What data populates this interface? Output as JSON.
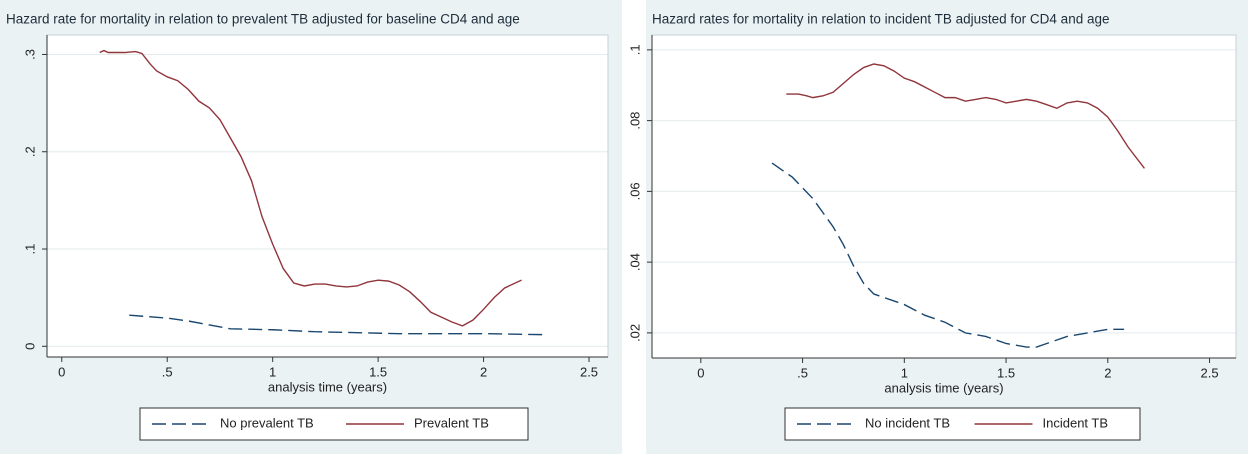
{
  "chart_data": [
    {
      "type": "line",
      "title": "Hazard rate for mortality in relation to prevalent TB adjusted for baseline CD4 and age",
      "x_label": "analysis time (years)",
      "xlim": [
        -0.07,
        2.59
      ],
      "ylim": [
        -0.011,
        0.32
      ],
      "xticks": [
        0,
        {
          "value": 0.5,
          "label": ".5"
        },
        1,
        1.5,
        2,
        2.5
      ],
      "yticks": [
        0,
        {
          "value": 0.1,
          "label": ".1"
        },
        {
          "value": 0.2,
          "label": ".2"
        },
        {
          "value": 0.3,
          "label": ".3"
        }
      ],
      "grid": true,
      "series": [
        {
          "name": "No prevalent TB",
          "color": "#1a476f",
          "dash": "dashed",
          "x": [
            0.32,
            0.5,
            0.6,
            0.7,
            0.8,
            1.0,
            1.2,
            1.4,
            1.6,
            1.8,
            2.0,
            2.28
          ],
          "values": [
            0.032,
            0.029,
            0.026,
            0.022,
            0.018,
            0.017,
            0.015,
            0.014,
            0.013,
            0.013,
            0.013,
            0.012
          ]
        },
        {
          "name": "Prevalent TB",
          "color": "#90353b",
          "dash": "solid",
          "x": [
            0.18,
            0.2,
            0.22,
            0.3,
            0.35,
            0.38,
            0.42,
            0.45,
            0.5,
            0.55,
            0.6,
            0.65,
            0.7,
            0.75,
            0.8,
            0.85,
            0.9,
            0.95,
            1.0,
            1.05,
            1.1,
            1.15,
            1.2,
            1.25,
            1.3,
            1.35,
            1.4,
            1.45,
            1.5,
            1.55,
            1.6,
            1.65,
            1.7,
            1.75,
            1.8,
            1.85,
            1.9,
            1.95,
            2.0,
            2.05,
            2.1,
            2.18
          ],
          "values": [
            0.302,
            0.304,
            0.302,
            0.302,
            0.303,
            0.301,
            0.29,
            0.283,
            0.277,
            0.273,
            0.264,
            0.252,
            0.245,
            0.233,
            0.214,
            0.195,
            0.17,
            0.133,
            0.105,
            0.08,
            0.065,
            0.062,
            0.064,
            0.064,
            0.062,
            0.061,
            0.062,
            0.066,
            0.068,
            0.067,
            0.063,
            0.056,
            0.046,
            0.035,
            0.03,
            0.025,
            0.021,
            0.027,
            0.038,
            0.05,
            0.06,
            0.068
          ]
        }
      ]
    },
    {
      "type": "line",
      "title": "Hazard rates for mortality in relation to incident TB adjusted for CD4 and age",
      "x_label": "analysis time (years)",
      "xlim": [
        -0.24,
        2.63
      ],
      "ylim": [
        0.0129,
        0.1042
      ],
      "xticks": [
        0,
        {
          "value": 0.5,
          "label": ".5"
        },
        1,
        1.5,
        2,
        2.5
      ],
      "yticks": [
        {
          "value": 0.02,
          "label": ".02"
        },
        {
          "value": 0.04,
          "label": ".04"
        },
        {
          "value": 0.06,
          "label": ".06"
        },
        {
          "value": 0.08,
          "label": ".08"
        },
        {
          "value": 0.1,
          "label": ".1"
        }
      ],
      "grid": true,
      "series": [
        {
          "name": "No incident TB",
          "color": "#1a476f",
          "dash": "dashed",
          "x": [
            0.35,
            0.4,
            0.45,
            0.5,
            0.55,
            0.6,
            0.65,
            0.7,
            0.75,
            0.8,
            0.85,
            0.9,
            1.0,
            1.1,
            1.2,
            1.3,
            1.4,
            1.5,
            1.6,
            1.65,
            1.7,
            1.8,
            1.9,
            2.0,
            2.08
          ],
          "values": [
            0.068,
            0.066,
            0.064,
            0.061,
            0.058,
            0.054,
            0.05,
            0.045,
            0.039,
            0.034,
            0.031,
            0.03,
            0.028,
            0.025,
            0.023,
            0.02,
            0.019,
            0.017,
            0.016,
            0.016,
            0.017,
            0.019,
            0.02,
            0.021,
            0.021
          ]
        },
        {
          "name": "Incident TB",
          "color": "#90353b",
          "dash": "solid",
          "x": [
            0.42,
            0.48,
            0.52,
            0.55,
            0.6,
            0.65,
            0.7,
            0.75,
            0.8,
            0.85,
            0.9,
            0.95,
            1.0,
            1.05,
            1.1,
            1.15,
            1.2,
            1.25,
            1.3,
            1.35,
            1.4,
            1.45,
            1.5,
            1.55,
            1.6,
            1.65,
            1.7,
            1.75,
            1.8,
            1.85,
            1.9,
            1.95,
            2.0,
            2.05,
            2.1,
            2.18
          ],
          "values": [
            0.0875,
            0.0875,
            0.087,
            0.0865,
            0.087,
            0.088,
            0.0905,
            0.093,
            0.095,
            0.096,
            0.0955,
            0.094,
            0.092,
            0.091,
            0.0895,
            0.088,
            0.0865,
            0.0865,
            0.0855,
            0.086,
            0.0865,
            0.086,
            0.085,
            0.0855,
            0.086,
            0.0855,
            0.0845,
            0.0835,
            0.085,
            0.0855,
            0.085,
            0.0835,
            0.081,
            0.077,
            0.0725,
            0.0665
          ]
        }
      ]
    }
  ]
}
